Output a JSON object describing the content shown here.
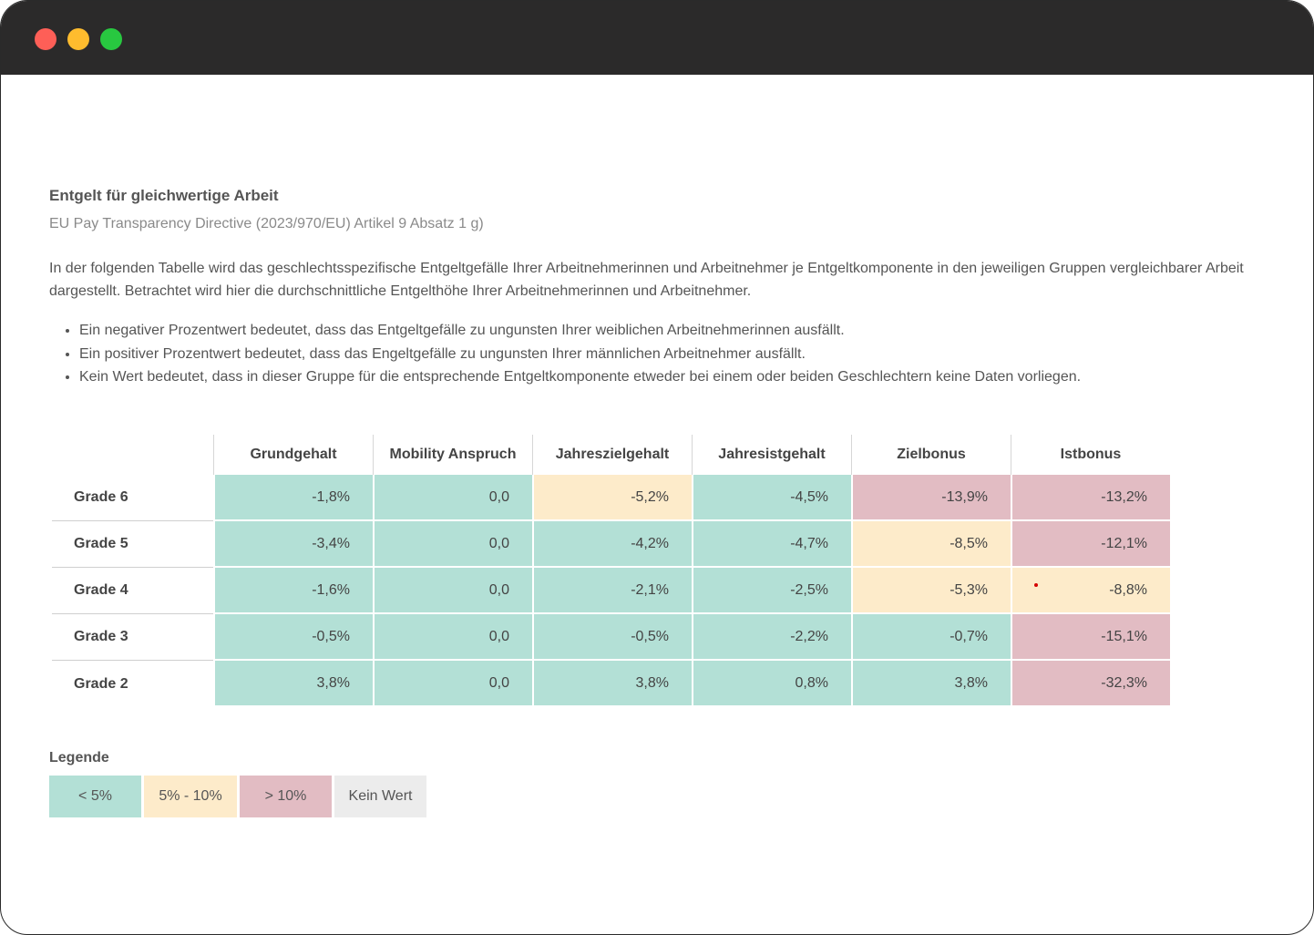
{
  "window": {
    "controls": [
      "close",
      "minimize",
      "maximize"
    ]
  },
  "section": {
    "title": "Entgelt für gleichwertige Arbeit",
    "subtitle": "EU Pay Transparency Directive (2023/970/EU) Artikel 9 Absatz 1 g)",
    "intro": "In der folgenden Tabelle wird das geschlechtsspezifische Entgeltgefälle Ihrer Arbeitnehmerinnen und Arbeitnehmer je Entgeltkomponente in den jeweiligen Gruppen vergleichbarer Arbeit dargestellt. Betrachtet wird hier die durchschnittliche Entgelthöhe Ihrer Arbeitnehmerinnen und Arbeitnehmer.",
    "bullets": [
      "Ein negativer Prozentwert bedeutet, dass das Entgeltgefälle zu ungunsten Ihrer weiblichen Arbeitnehmerinnen ausfällt.",
      "Ein positiver Prozentwert bedeutet, dass das Engeltgefälle zu ungunsten Ihrer männlichen Arbeitnehmer ausfällt.",
      "Kein Wert bedeutet, dass in dieser Gruppe für die entsprechende Entgeltkomponente etweder bei einem oder beiden Geschlechtern keine Daten vorliegen."
    ]
  },
  "table": {
    "columns": [
      "Grundgehalt",
      "Mobility Anspruch",
      "Jahreszielgehalt",
      "Jahresistgehalt",
      "Zielbonus",
      "Istbonus"
    ],
    "rows": [
      {
        "label": "Grade 6",
        "values": [
          "-1,8%",
          "0,0",
          "-5,2%",
          "-4,5%",
          "-13,9%",
          "-13,2%"
        ],
        "levels": [
          "green",
          "green",
          "yellow",
          "green",
          "red",
          "red"
        ]
      },
      {
        "label": "Grade 5",
        "values": [
          "-3,4%",
          "0,0",
          "-4,2%",
          "-4,7%",
          "-8,5%",
          "-12,1%"
        ],
        "levels": [
          "green",
          "green",
          "green",
          "green",
          "yellow",
          "red"
        ]
      },
      {
        "label": "Grade 4",
        "values": [
          "-1,6%",
          "0,0",
          "-2,1%",
          "-2,5%",
          "-5,3%",
          "-8,8%"
        ],
        "levels": [
          "green",
          "green",
          "green",
          "green",
          "yellow",
          "yellow"
        ]
      },
      {
        "label": "Grade 3",
        "values": [
          "-0,5%",
          "0,0",
          "-0,5%",
          "-2,2%",
          "-0,7%",
          "-15,1%"
        ],
        "levels": [
          "green",
          "green",
          "green",
          "green",
          "green",
          "red"
        ]
      },
      {
        "label": "Grade 2",
        "values": [
          "3,8%",
          "0,0",
          "3,8%",
          "0,8%",
          "3,8%",
          "-32,3%"
        ],
        "levels": [
          "green",
          "green",
          "green",
          "green",
          "green",
          "red"
        ]
      }
    ]
  },
  "legend": {
    "title": "Legende",
    "items": [
      {
        "label": "< 5%",
        "level": "green"
      },
      {
        "label": "5% - 10%",
        "level": "yellow"
      },
      {
        "label": "> 10%",
        "level": "red"
      },
      {
        "label": "Kein Wert",
        "level": "grey"
      }
    ]
  },
  "colors": {
    "green": "#b3e0d6",
    "yellow": "#fdebca",
    "red": "#e2bcc3",
    "grey": "#ececec",
    "titlebar": "#2b2a2a"
  }
}
